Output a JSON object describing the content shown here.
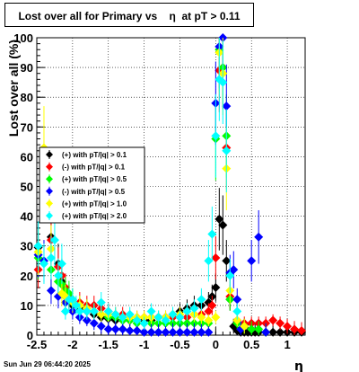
{
  "chart_data": {
    "type": "scatter",
    "title": "Lost over all for Primary vs    η  at pT > 0.11",
    "xlabel": "η",
    "ylabel": "Lost over all (%)",
    "xlim": [
      -2.5,
      1.25
    ],
    "ylim": [
      0,
      100
    ],
    "x_ticks": [
      "-2.5",
      "-2",
      "-1.5",
      "-1",
      "-0.5",
      "0",
      "0.5",
      "1"
    ],
    "y_ticks": [
      "0",
      "10",
      "20",
      "30",
      "40",
      "50",
      "60",
      "70",
      "80",
      "90",
      "100"
    ],
    "grid": true,
    "legend_position": "left",
    "series": [
      {
        "name": "(+) with pT/|q| > 0.1",
        "color": "#000000",
        "points": [
          [
            -2.48,
            29.5
          ],
          [
            -2.3,
            33
          ],
          [
            -2.2,
            24
          ],
          [
            -2.15,
            18
          ],
          [
            -2.1,
            13
          ],
          [
            -2.05,
            12
          ],
          [
            -2.0,
            10
          ],
          [
            -1.9,
            9
          ],
          [
            -1.8,
            8
          ],
          [
            -1.7,
            7
          ],
          [
            -1.6,
            6
          ],
          [
            -1.5,
            5.5
          ],
          [
            -1.4,
            5
          ],
          [
            -1.3,
            5
          ],
          [
            -1.2,
            5
          ],
          [
            -1.1,
            5
          ],
          [
            -1.0,
            5
          ],
          [
            -0.9,
            5
          ],
          [
            -0.8,
            6
          ],
          [
            -0.7,
            6
          ],
          [
            -0.6,
            7
          ],
          [
            -0.5,
            8
          ],
          [
            -0.4,
            9
          ],
          [
            -0.3,
            10
          ],
          [
            -0.2,
            10
          ],
          [
            -0.1,
            11
          ],
          [
            -0.05,
            13
          ],
          [
            0.0,
            16
          ],
          [
            0.05,
            39
          ],
          [
            0.1,
            37
          ],
          [
            0.15,
            25
          ],
          [
            0.2,
            12
          ],
          [
            0.25,
            3
          ],
          [
            0.3,
            1.5
          ],
          [
            0.35,
            1
          ],
          [
            0.4,
            1
          ],
          [
            0.45,
            1
          ],
          [
            0.5,
            1
          ],
          [
            0.55,
            1
          ],
          [
            0.6,
            1
          ],
          [
            0.7,
            1
          ],
          [
            0.8,
            1
          ],
          [
            0.9,
            1
          ],
          [
            1.0,
            1
          ],
          [
            1.1,
            1
          ],
          [
            1.2,
            1
          ]
        ]
      },
      {
        "name": "(-) with pT/|q| > 0.1",
        "color": "#ff0000",
        "points": [
          [
            -2.48,
            22
          ],
          [
            -2.3,
            32
          ],
          [
            -2.2,
            23
          ],
          [
            -2.15,
            20
          ],
          [
            -2.1,
            16
          ],
          [
            -2.05,
            13
          ],
          [
            -2.0,
            12
          ],
          [
            -1.9,
            11
          ],
          [
            -1.8,
            10
          ],
          [
            -1.7,
            10
          ],
          [
            -1.6,
            9
          ],
          [
            -1.5,
            8
          ],
          [
            -1.4,
            7
          ],
          [
            -1.3,
            7
          ],
          [
            -1.2,
            6
          ],
          [
            -1.1,
            6
          ],
          [
            -1.0,
            6
          ],
          [
            -0.9,
            6
          ],
          [
            -0.8,
            6
          ],
          [
            -0.7,
            6
          ],
          [
            -0.6,
            6
          ],
          [
            -0.5,
            6
          ],
          [
            -0.4,
            6
          ],
          [
            -0.3,
            7
          ],
          [
            -0.2,
            7
          ],
          [
            -0.1,
            8
          ],
          [
            -0.05,
            10
          ],
          [
            0.0,
            26
          ],
          [
            0.05,
            89
          ],
          [
            0.1,
            90
          ],
          [
            0.15,
            63
          ],
          [
            0.2,
            13
          ],
          [
            0.3,
            5
          ],
          [
            0.4,
            4
          ],
          [
            0.5,
            4
          ],
          [
            0.6,
            4
          ],
          [
            0.7,
            4
          ],
          [
            0.8,
            5
          ],
          [
            0.9,
            4
          ],
          [
            1.0,
            3
          ],
          [
            1.1,
            2
          ],
          [
            1.2,
            1.5
          ]
        ]
      },
      {
        "name": "(+) with pT/|q| > 0.5",
        "color": "#00ff00",
        "points": [
          [
            -2.48,
            26
          ],
          [
            -2.3,
            22
          ],
          [
            -2.2,
            18
          ],
          [
            -2.15,
            17
          ],
          [
            -2.1,
            15
          ],
          [
            -2.05,
            14
          ],
          [
            -2.0,
            12
          ],
          [
            -1.9,
            10
          ],
          [
            -1.8,
            9
          ],
          [
            -1.7,
            8
          ],
          [
            -1.6,
            7
          ],
          [
            -1.5,
            6
          ],
          [
            -1.4,
            6
          ],
          [
            -1.3,
            5
          ],
          [
            -1.2,
            5
          ],
          [
            -1.1,
            4
          ],
          [
            -1.0,
            4
          ],
          [
            -0.9,
            4
          ],
          [
            -0.8,
            4
          ],
          [
            -0.7,
            4
          ],
          [
            -0.6,
            4
          ],
          [
            -0.5,
            4
          ],
          [
            -0.4,
            4
          ],
          [
            -0.3,
            4
          ],
          [
            -0.2,
            4
          ],
          [
            -0.1,
            4
          ],
          [
            0.0,
            66
          ],
          [
            0.05,
            96
          ],
          [
            0.1,
            90
          ],
          [
            0.15,
            67
          ],
          [
            0.2,
            12
          ],
          [
            0.3,
            4
          ],
          [
            0.4,
            3
          ],
          [
            0.5,
            2
          ],
          [
            0.6,
            2
          ],
          [
            0.7,
            1
          ]
        ]
      },
      {
        "name": "(-) with pT/|q| > 0.5",
        "color": "#0000ff",
        "points": [
          [
            -2.48,
            27
          ],
          [
            -2.4,
            25
          ],
          [
            -2.3,
            15
          ],
          [
            -2.2,
            13
          ],
          [
            -2.1,
            11
          ],
          [
            -2.0,
            8
          ],
          [
            -1.9,
            6
          ],
          [
            -1.8,
            5
          ],
          [
            -1.7,
            4
          ],
          [
            -1.6,
            3
          ],
          [
            -1.5,
            2
          ],
          [
            -1.4,
            2
          ],
          [
            -1.3,
            2
          ],
          [
            -1.2,
            1.5
          ],
          [
            -1.1,
            1.5
          ],
          [
            -1.0,
            1
          ],
          [
            -0.9,
            1
          ],
          [
            -0.8,
            1
          ],
          [
            -0.7,
            1
          ],
          [
            -0.6,
            1
          ],
          [
            -0.5,
            1
          ],
          [
            -0.4,
            1
          ],
          [
            -0.3,
            1
          ],
          [
            -0.2,
            1
          ],
          [
            -0.1,
            1
          ],
          [
            0.0,
            78
          ],
          [
            0.05,
            97
          ],
          [
            0.1,
            100
          ],
          [
            0.15,
            77
          ],
          [
            0.2,
            21
          ],
          [
            0.25,
            22
          ],
          [
            0.3,
            12
          ],
          [
            0.35,
            2
          ],
          [
            0.5,
            25
          ],
          [
            0.6,
            33
          ],
          [
            0.7,
            1
          ]
        ]
      },
      {
        "name": "(+) with pT/|q| > 1.0",
        "color": "#ffff00",
        "points": [
          [
            -2.48,
            28
          ],
          [
            -2.4,
            63
          ],
          [
            -2.3,
            29
          ],
          [
            -2.2,
            20
          ],
          [
            -2.15,
            14
          ],
          [
            -2.1,
            13
          ],
          [
            -2.0,
            11
          ],
          [
            -1.9,
            10
          ],
          [
            -1.8,
            9
          ],
          [
            -1.7,
            8
          ],
          [
            -1.6,
            7
          ],
          [
            -1.5,
            7
          ],
          [
            -1.4,
            7
          ],
          [
            -1.3,
            6
          ],
          [
            -1.2,
            6
          ],
          [
            -1.1,
            6
          ],
          [
            -1.0,
            6
          ],
          [
            -0.9,
            6
          ],
          [
            -0.8,
            6
          ],
          [
            -0.7,
            6
          ],
          [
            -0.6,
            7
          ],
          [
            -0.5,
            7
          ],
          [
            -0.4,
            8
          ],
          [
            -0.3,
            7
          ],
          [
            -0.2,
            6
          ],
          [
            -0.1,
            5
          ],
          [
            0.0,
            6
          ],
          [
            0.05,
            95
          ],
          [
            0.1,
            88
          ],
          [
            0.15,
            56
          ],
          [
            0.2,
            15
          ],
          [
            0.3,
            5
          ],
          [
            0.4,
            3
          ]
        ]
      },
      {
        "name": "(+) with pT/|q| > 2.0",
        "color": "#00ffff",
        "points": [
          [
            -2.48,
            30
          ],
          [
            -2.4,
            24
          ],
          [
            -2.3,
            26
          ],
          [
            -2.25,
            32
          ],
          [
            -2.2,
            20
          ],
          [
            -2.15,
            24
          ],
          [
            -2.1,
            8
          ],
          [
            -2.05,
            12
          ],
          [
            -2.0,
            12
          ],
          [
            -1.95,
            10
          ],
          [
            -1.9,
            8
          ],
          [
            -1.8,
            8
          ],
          [
            -1.7,
            8
          ],
          [
            -1.6,
            11
          ],
          [
            -1.5,
            8
          ],
          [
            -1.4,
            7
          ],
          [
            -1.3,
            6
          ],
          [
            -1.2,
            7
          ],
          [
            -1.1,
            5
          ],
          [
            -1.0,
            4
          ],
          [
            -0.9,
            8
          ],
          [
            -0.8,
            6
          ],
          [
            -0.7,
            5
          ],
          [
            -0.6,
            7
          ],
          [
            -0.5,
            6
          ],
          [
            -0.4,
            8
          ],
          [
            -0.3,
            9
          ],
          [
            -0.2,
            12
          ],
          [
            -0.1,
            25
          ],
          [
            -0.05,
            34
          ],
          [
            0.0,
            67
          ],
          [
            0.05,
            86
          ],
          [
            0.1,
            85
          ],
          [
            0.15,
            62
          ],
          [
            0.2,
            20
          ],
          [
            0.3,
            8
          ]
        ]
      }
    ]
  },
  "footer": {
    "timestamp": "Sun Jun 29 06:44:20 2025"
  }
}
